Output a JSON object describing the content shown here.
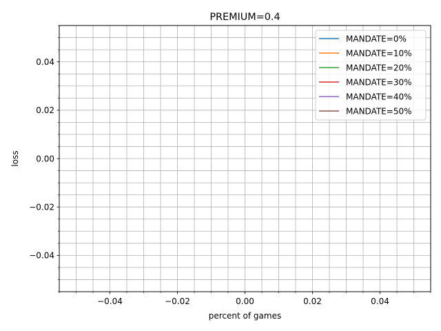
{
  "chart_data": {
    "type": "line",
    "title": "PREMIUM=0.4",
    "xlabel": "percent of games",
    "ylabel": "loss",
    "xlim": [
      -0.055,
      0.055
    ],
    "ylim": [
      -0.055,
      0.055
    ],
    "x_ticks": [
      -0.04,
      -0.02,
      0.0,
      0.02,
      0.04
    ],
    "y_ticks": [
      -0.04,
      -0.02,
      0.0,
      0.02,
      0.04
    ],
    "x_tick_labels": [
      "−0.04",
      "−0.02",
      "0.00",
      "0.02",
      "0.04"
    ],
    "y_tick_labels": [
      "−0.04",
      "−0.02",
      "0.00",
      "0.02",
      "0.04"
    ],
    "x_minor_step": 0.005,
    "y_minor_step": 0.005,
    "grid": "major and minor",
    "legend_position": "upper right",
    "series": [
      {
        "name": "MANDATE=0%",
        "color": "#1f77b4",
        "x": [],
        "y": []
      },
      {
        "name": "MANDATE=10%",
        "color": "#ff7f0e",
        "x": [],
        "y": []
      },
      {
        "name": "MANDATE=20%",
        "color": "#2ca02c",
        "x": [],
        "y": []
      },
      {
        "name": "MANDATE=30%",
        "color": "#d62728",
        "x": [],
        "y": []
      },
      {
        "name": "MANDATE=40%",
        "color": "#9467bd",
        "x": [],
        "y": []
      },
      {
        "name": "MANDATE=50%",
        "color": "#8c564b",
        "x": [],
        "y": []
      }
    ]
  }
}
